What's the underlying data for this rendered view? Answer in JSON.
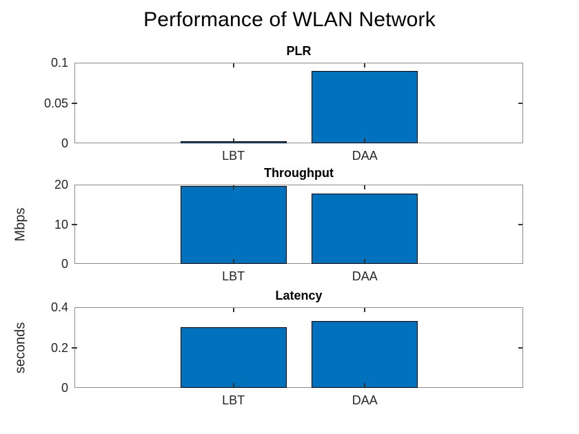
{
  "title": "Performance of WLAN Network",
  "colors": {
    "bar_fill": "#0072BD",
    "bar_edge": "#000000",
    "axis_box": "#8C8C8C",
    "tick": "#333333",
    "tick_label_text": "#262626",
    "title_text": "#000000",
    "background": "#FFFFFF"
  },
  "chart_data": [
    {
      "type": "bar",
      "title": "PLR",
      "ylabel": "",
      "categories": [
        "LBT",
        "DAA"
      ],
      "values": [
        0.001,
        0.09
      ],
      "ylim": [
        0,
        0.1
      ],
      "yticks": [
        0,
        0.05,
        0.1
      ],
      "ytick_labels": [
        "0",
        "0.05",
        "0.1"
      ],
      "grid": false
    },
    {
      "type": "bar",
      "title": "Throughput",
      "ylabel": "Mbps",
      "categories": [
        "LBT",
        "DAA"
      ],
      "values": [
        19.7,
        17.8
      ],
      "ylim": [
        0,
        20
      ],
      "yticks": [
        0,
        10,
        20
      ],
      "ytick_labels": [
        "0",
        "10",
        "20"
      ],
      "grid": false
    },
    {
      "type": "bar",
      "title": "Latency",
      "ylabel": "seconds",
      "categories": [
        "LBT",
        "DAA"
      ],
      "values": [
        0.3,
        0.33
      ],
      "ylim": [
        0,
        0.4
      ],
      "yticks": [
        0,
        0.2,
        0.4
      ],
      "ytick_labels": [
        "0",
        "0.2",
        "0.4"
      ],
      "grid": false
    }
  ]
}
